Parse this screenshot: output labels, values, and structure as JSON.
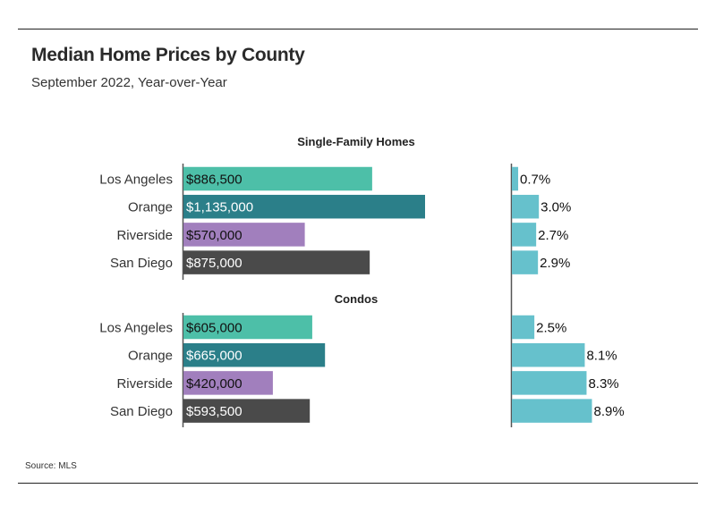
{
  "title": "Median Home Prices by County",
  "subtitle": "September 2022, Year-over-Year",
  "source": "Source: MLS",
  "chart_data": [
    {
      "type": "bar",
      "orientation": "horizontal",
      "title": "Single-Family Homes",
      "categories": [
        "Los Angeles",
        "Orange",
        "Riverside",
        "San Diego"
      ],
      "values": [
        886500,
        1135000,
        570000,
        875000
      ],
      "value_labels": [
        "$886,500",
        "$1,135,000",
        "$570,000",
        "$875,000"
      ],
      "colors": [
        "#4dbfa8",
        "#2b7f89",
        "#a17fbd",
        "#4a4a4a"
      ],
      "label_colors": [
        "#111111",
        "#ffffff",
        "#111111",
        "#ffffff"
      ],
      "change_values": [
        0.7,
        3.0,
        2.7,
        2.9
      ],
      "change_labels": [
        "0.7%",
        "3.0%",
        "2.7%",
        "2.9%"
      ]
    },
    {
      "type": "bar",
      "orientation": "horizontal",
      "title": "Condos",
      "categories": [
        "Los Angeles",
        "Orange",
        "Riverside",
        "San Diego"
      ],
      "values": [
        605000,
        665000,
        420000,
        593500
      ],
      "value_labels": [
        "$605,000",
        "$665,000",
        "$420,000",
        "$593,500"
      ],
      "colors": [
        "#4dbfa8",
        "#2b7f89",
        "#a17fbd",
        "#4a4a4a"
      ],
      "label_colors": [
        "#111111",
        "#ffffff",
        "#111111",
        "#ffffff"
      ],
      "change_values": [
        2.5,
        8.1,
        8.3,
        8.9
      ],
      "change_labels": [
        "2.5%",
        "8.1%",
        "8.3%",
        "8.9%"
      ]
    }
  ],
  "change_bar_color": "#66c1cc"
}
